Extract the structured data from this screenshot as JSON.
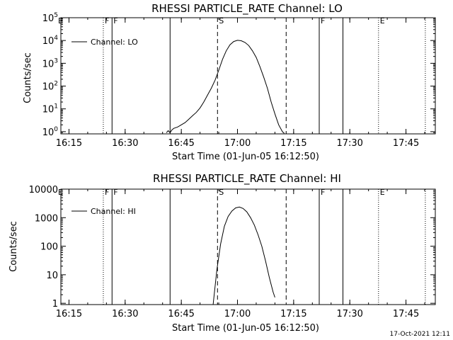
{
  "chart_data": [
    {
      "type": "line",
      "title": "RHESSI PARTICLE_RATE Channel: LO",
      "xlabel": "Start Time (01-Jun-05 16:12:50)",
      "ylabel": "Counts/sec",
      "y_scale": "log",
      "ylim": [
        0.8,
        100000
      ],
      "xlim": [
        "16:12:50",
        "17:52:50"
      ],
      "x_ticks": [
        "16:15",
        "16:30",
        "16:45",
        "17:00",
        "17:15",
        "17:30",
        "17:45"
      ],
      "y_ticks": [
        {
          "value": 1,
          "base": "10",
          "exp": "0"
        },
        {
          "value": 10,
          "base": "10",
          "exp": "1"
        },
        {
          "value": 100,
          "base": "10",
          "exp": "2"
        },
        {
          "value": 1000,
          "base": "10",
          "exp": "3"
        },
        {
          "value": 10000,
          "base": "10",
          "exp": "4"
        },
        {
          "value": 100000,
          "base": "10",
          "exp": "5"
        }
      ],
      "legend": {
        "label": "Channel: LO",
        "position": "top-left"
      },
      "series": [
        {
          "name": "Channel: LO",
          "x": [
            "16:41:00",
            "16:41:30",
            "16:42:00",
            "16:42:30",
            "16:43:00",
            "16:44:00",
            "16:45:00",
            "16:46:00",
            "16:47:00",
            "16:48:00",
            "16:49:00",
            "16:50:00",
            "16:51:00",
            "16:52:00",
            "16:53:00",
            "16:54:00",
            "16:55:00",
            "16:56:00",
            "16:57:00",
            "16:58:00",
            "16:59:00",
            "17:00:00",
            "17:01:00",
            "17:02:00",
            "17:03:00",
            "17:04:00",
            "17:05:00",
            "17:06:00",
            "17:07:00",
            "17:08:00",
            "17:09:00",
            "17:10:00",
            "17:11:00",
            "17:12:00",
            "17:12:30"
          ],
          "y": [
            0.9,
            1.1,
            0.9,
            1.2,
            1.4,
            1.6,
            2,
            2.5,
            3.5,
            5,
            7,
            11,
            20,
            40,
            80,
            180,
            500,
            1500,
            3500,
            6500,
            9000,
            10200,
            9800,
            8200,
            6000,
            3500,
            1800,
            700,
            250,
            80,
            20,
            6,
            2,
            1,
            0.85
          ]
        }
      ],
      "event_lines": [
        {
          "time": "16:24:10",
          "style": "dotted",
          "label": "F"
        },
        {
          "time": "16:26:30",
          "style": "solid",
          "label": "F"
        },
        {
          "time": "16:42:00",
          "style": "solid",
          "label": ""
        },
        {
          "time": "16:54:40",
          "style": "dashed",
          "label": "S"
        },
        {
          "time": "17:13:00",
          "style": "dashed",
          "label": ""
        },
        {
          "time": "17:21:50",
          "style": "solid",
          "label": "F"
        },
        {
          "time": "17:28:10",
          "style": "solid",
          "label": ""
        },
        {
          "time": "17:37:40",
          "style": "dotted",
          "label": "E"
        },
        {
          "time": "17:50:10",
          "style": "dotted",
          "label": ""
        }
      ],
      "left_edge_label": "E"
    },
    {
      "type": "line",
      "title": "RHESSI PARTICLE_RATE Channel: HI",
      "xlabel": "Start Time (01-Jun-05 16:12:50)",
      "ylabel": "Counts/sec",
      "y_scale": "log",
      "ylim": [
        0.9,
        10000
      ],
      "xlim": [
        "16:12:50",
        "17:52:50"
      ],
      "x_ticks": [
        "16:15",
        "16:30",
        "16:45",
        "17:00",
        "17:15",
        "17:30",
        "17:45"
      ],
      "y_ticks": [
        {
          "value": 1,
          "label": "1"
        },
        {
          "value": 10,
          "label": "10"
        },
        {
          "value": 100,
          "label": "100"
        },
        {
          "value": 1000,
          "label": "1000"
        },
        {
          "value": 10000,
          "label": "10000"
        }
      ],
      "legend": {
        "label": "Channel: HI",
        "position": "top-left"
      },
      "series": [
        {
          "name": "Channel: HI",
          "x": [
            "16:53:30",
            "16:54:30",
            "16:55:30",
            "16:56:30",
            "16:57:30",
            "16:58:30",
            "16:59:30",
            "17:00:30",
            "17:01:30",
            "17:02:30",
            "17:03:30",
            "17:04:30",
            "17:05:30",
            "17:06:30",
            "17:07:30",
            "17:08:30",
            "17:09:30",
            "17:10:00"
          ],
          "y": [
            0.9,
            15,
            120,
            500,
            1100,
            1700,
            2200,
            2350,
            2100,
            1600,
            1000,
            550,
            250,
            100,
            30,
            8,
            2.5,
            1.6
          ]
        }
      ],
      "event_lines": [
        {
          "time": "16:24:10",
          "style": "dotted",
          "label": "F"
        },
        {
          "time": "16:26:30",
          "style": "solid",
          "label": "F"
        },
        {
          "time": "16:42:00",
          "style": "solid",
          "label": ""
        },
        {
          "time": "16:54:40",
          "style": "dashed",
          "label": "S"
        },
        {
          "time": "17:13:00",
          "style": "dashed",
          "label": ""
        },
        {
          "time": "17:21:50",
          "style": "solid",
          "label": "F"
        },
        {
          "time": "17:28:10",
          "style": "solid",
          "label": ""
        },
        {
          "time": "17:37:40",
          "style": "dotted",
          "label": "E"
        },
        {
          "time": "17:50:10",
          "style": "dotted",
          "label": ""
        }
      ],
      "left_edge_label": "E"
    }
  ],
  "footer": {
    "timestamp": "17-Oct-2021 12:11"
  }
}
